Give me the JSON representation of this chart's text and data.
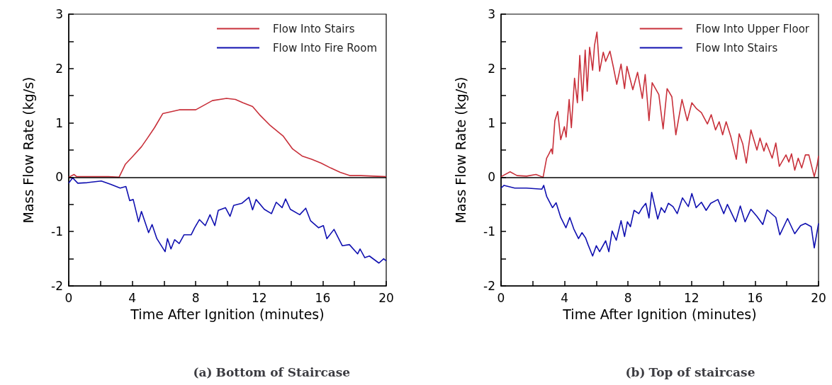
{
  "chart_data": [
    {
      "type": "line",
      "title": "(a) Bottom of Staircase",
      "xlabel": "Time After Ignition (minutes)",
      "ylabel": "Mass Flow Rate (kg/s)",
      "legend": "top right",
      "grid": false,
      "line_style": "solid",
      "marker": "none",
      "xlim": [
        0,
        20
      ],
      "xticks": [
        0,
        {
          "value": 2,
          "label": null
        },
        4,
        {
          "value": 6,
          "label": null
        },
        8,
        {
          "value": 10,
          "label": null
        },
        12,
        {
          "value": 14,
          "label": null
        },
        16,
        {
          "value": 18,
          "label": null
        },
        20
      ],
      "ylim": [
        -2,
        3
      ],
      "yticks": [
        -2,
        {
          "value": -1.5,
          "label": null
        },
        -1,
        {
          "value": -0.5,
          "label": null
        },
        0,
        {
          "value": 0.5,
          "label": null
        },
        1,
        {
          "value": 1.5,
          "label": null
        },
        2,
        {
          "value": 2.5,
          "label": null
        },
        3
      ],
      "ref_lines": [
        {
          "axis": "y",
          "value": 0,
          "color": "#000000"
        }
      ],
      "series": [
        {
          "name": "Flow Into Stairs",
          "color": "#c8303a",
          "x": [
            0,
            0.34,
            0.5,
            1.5,
            2.5,
            3.17,
            3.57,
            3.99,
            4.58,
            4.96,
            5.4,
            5.92,
            6.96,
            8.0,
            9.05,
            9.94,
            10.5,
            10.98,
            11.58,
            12.02,
            12.7,
            13.5,
            14.1,
            14.7,
            15.3,
            15.9,
            16.5,
            17.1,
            17.7,
            18.4,
            20
          ],
          "values": [
            0,
            0.05,
            0.01,
            0.01,
            0.01,
            0,
            0.24,
            0.37,
            0.56,
            0.72,
            0.91,
            1.17,
            1.24,
            1.24,
            1.41,
            1.45,
            1.43,
            1.37,
            1.3,
            1.15,
            0.95,
            0.76,
            0.52,
            0.39,
            0.33,
            0.26,
            0.17,
            0.09,
            0.03,
            0.03,
            0.01
          ]
        },
        {
          "name": "Flow Into Fire Room",
          "color": "#1010b0",
          "x": [
            0,
            0.24,
            0.57,
            1.16,
            2.05,
            2.65,
            3.24,
            3.6,
            3.84,
            4.06,
            4.4,
            4.58,
            5.03,
            5.25,
            5.55,
            6.07,
            6.22,
            6.44,
            6.67,
            6.96,
            7.26,
            7.71,
            7.93,
            8.23,
            8.6,
            8.9,
            9.2,
            9.42,
            9.87,
            10.16,
            10.39,
            10.9,
            11.35,
            11.58,
            11.8,
            12.32,
            12.77,
            13.07,
            13.44,
            13.66,
            13.96,
            14.55,
            14.93,
            15.23,
            15.74,
            16.04,
            16.26,
            16.71,
            17.23,
            17.68,
            18.2,
            18.35,
            18.65,
            18.94,
            19.54,
            19.84,
            20
          ],
          "values": [
            -0.11,
            -0.01,
            -0.11,
            -0.1,
            -0.07,
            -0.13,
            -0.2,
            -0.17,
            -0.43,
            -0.41,
            -0.82,
            -0.63,
            -1.02,
            -0.87,
            -1.13,
            -1.37,
            -1.13,
            -1.32,
            -1.15,
            -1.22,
            -1.06,
            -1.06,
            -0.93,
            -0.78,
            -0.89,
            -0.69,
            -0.89,
            -0.61,
            -0.56,
            -0.72,
            -0.52,
            -0.48,
            -0.37,
            -0.6,
            -0.41,
            -0.59,
            -0.67,
            -0.46,
            -0.56,
            -0.4,
            -0.59,
            -0.69,
            -0.57,
            -0.8,
            -0.93,
            -0.89,
            -1.13,
            -0.96,
            -1.26,
            -1.24,
            -1.41,
            -1.32,
            -1.48,
            -1.45,
            -1.58,
            -1.5,
            -1.54
          ]
        }
      ]
    },
    {
      "type": "line",
      "title": "(b) Top of staircase",
      "xlabel": "Time After Ignition (minutes)",
      "ylabel": "Mass Flow Rate (kg/s)",
      "legend": "top right",
      "grid": false,
      "line_style": "solid",
      "marker": "none",
      "xlim": [
        0,
        20
      ],
      "xticks": [
        0,
        {
          "value": 2,
          "label": null
        },
        4,
        {
          "value": 6,
          "label": null
        },
        8,
        {
          "value": 10,
          "label": null
        },
        12,
        {
          "value": 14,
          "label": null
        },
        16,
        {
          "value": 18,
          "label": null
        },
        20
      ],
      "ylim": [
        -2,
        3
      ],
      "yticks": [
        -2,
        {
          "value": -1.5,
          "label": null
        },
        -1,
        {
          "value": -0.5,
          "label": null
        },
        0,
        {
          "value": 0.5,
          "label": null
        },
        1,
        {
          "value": 1.5,
          "label": null
        },
        2,
        {
          "value": 2.5,
          "label": null
        },
        3
      ],
      "ref_lines": [
        {
          "axis": "y",
          "value": 0,
          "color": "#000000"
        }
      ],
      "series": [
        {
          "name": "Flow Into Upper Floor",
          "color": "#c8303a",
          "x": [
            0,
            0.57,
            1.01,
            1.61,
            2.2,
            2.65,
            2.87,
            3.02,
            3.17,
            3.24,
            3.39,
            3.57,
            3.76,
            3.99,
            4.1,
            4.29,
            4.43,
            4.63,
            4.81,
            4.96,
            5.13,
            5.3,
            5.43,
            5.58,
            5.77,
            5.89,
            6.04,
            6.21,
            6.44,
            6.59,
            6.86,
            7.08,
            7.29,
            7.56,
            7.78,
            7.93,
            8.3,
            8.6,
            8.9,
            9.08,
            9.32,
            9.52,
            9.94,
            10.21,
            10.46,
            10.76,
            11.01,
            11.4,
            11.73,
            12.02,
            12.32,
            12.62,
            13.0,
            13.24,
            13.51,
            13.74,
            13.96,
            14.18,
            14.48,
            14.82,
            15.0,
            15.23,
            15.45,
            15.74,
            16.12,
            16.31,
            16.56,
            16.71,
            17.08,
            17.31,
            17.53,
            17.95,
            18.13,
            18.3,
            18.5,
            18.72,
            18.94,
            19.17,
            19.39,
            19.73,
            19.91,
            20
          ],
          "values": [
            0.01,
            0.1,
            0.03,
            0.02,
            0.05,
            0,
            0.35,
            0.43,
            0.52,
            0.43,
            1.04,
            1.21,
            0.69,
            0.93,
            0.74,
            1.43,
            0.91,
            1.82,
            1.37,
            2.24,
            1.41,
            2.34,
            1.58,
            2.39,
            1.97,
            2.43,
            2.67,
            1.95,
            2.3,
            2.13,
            2.32,
            2.02,
            1.71,
            2.08,
            1.63,
            2.04,
            1.61,
            1.93,
            1.45,
            1.89,
            1.04,
            1.74,
            1.52,
            0.89,
            1.63,
            1.48,
            0.78,
            1.43,
            1.04,
            1.37,
            1.26,
            1.19,
            0.98,
            1.15,
            0.87,
            1.02,
            0.78,
            1.02,
            0.74,
            0.33,
            0.8,
            0.61,
            0.26,
            0.87,
            0.5,
            0.72,
            0.48,
            0.63,
            0.35,
            0.63,
            0.2,
            0.41,
            0.28,
            0.43,
            0.13,
            0.35,
            0.17,
            0.41,
            0.41,
            0.01,
            0.22,
            0.39
          ]
        },
        {
          "name": "Flow Into Stairs",
          "color": "#1010b0",
          "x": [
            0,
            0.19,
            0.86,
            1.6,
            2.57,
            2.69,
            2.87,
            3.24,
            3.47,
            3.76,
            4.09,
            4.33,
            4.58,
            4.88,
            5.1,
            5.33,
            5.48,
            5.77,
            6.0,
            6.21,
            6.59,
            6.79,
            7.0,
            7.26,
            7.56,
            7.78,
            7.96,
            8.15,
            8.38,
            8.68,
            8.9,
            9.12,
            9.32,
            9.49,
            9.87,
            10.09,
            10.31,
            10.54,
            10.83,
            11.1,
            11.43,
            11.8,
            12.02,
            12.29,
            12.62,
            12.92,
            13.21,
            13.66,
            14.03,
            14.26,
            14.78,
            15.07,
            15.37,
            15.74,
            16.12,
            16.49,
            16.76,
            17.31,
            17.56,
            18.05,
            18.5,
            18.87,
            19.17,
            19.54,
            19.73,
            20
          ],
          "values": [
            -0.2,
            -0.15,
            -0.2,
            -0.2,
            -0.22,
            -0.15,
            -0.35,
            -0.56,
            -0.47,
            -0.74,
            -0.93,
            -0.74,
            -0.95,
            -1.13,
            -1.02,
            -1.12,
            -1.24,
            -1.45,
            -1.26,
            -1.37,
            -1.17,
            -1.37,
            -0.99,
            -1.16,
            -0.8,
            -1.09,
            -0.82,
            -0.91,
            -0.61,
            -0.67,
            -0.56,
            -0.48,
            -0.75,
            -0.28,
            -0.77,
            -0.56,
            -0.65,
            -0.48,
            -0.54,
            -0.67,
            -0.38,
            -0.54,
            -0.3,
            -0.56,
            -0.46,
            -0.61,
            -0.48,
            -0.41,
            -0.67,
            -0.5,
            -0.82,
            -0.53,
            -0.82,
            -0.59,
            -0.72,
            -0.87,
            -0.6,
            -0.74,
            -1.06,
            -0.76,
            -1.04,
            -0.89,
            -0.85,
            -0.91,
            -1.3,
            -0.85
          ]
        }
      ]
    }
  ]
}
